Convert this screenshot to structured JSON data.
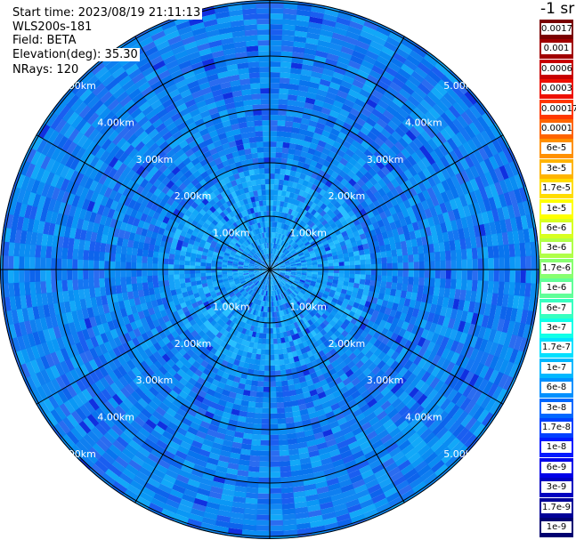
{
  "info": {
    "start_time": "Start time: 2023/08/19 21:11:13",
    "instrument": "WLS200s-181",
    "field": "Field: BETA",
    "elevation": "Elevation(deg): 35.30",
    "nrays": "NRays: 120"
  },
  "rings": [
    "1.00km",
    "2.00km",
    "3.00km",
    "4.00km",
    "5.00km"
  ],
  "colorbar": {
    "unit": "-1 sr",
    "entries": [
      {
        "label": "0.0017",
        "color": "#7a0000",
        "text": "#ffffff"
      },
      {
        "label": "0.001",
        "color": "#a10000",
        "text": "#ffffff"
      },
      {
        "label": "0.0006",
        "color": "#c80000",
        "text": "#ffffff"
      },
      {
        "label": "0.0003",
        "color": "#ee1000",
        "text": "#ffffff"
      },
      {
        "label": "0.00017",
        "color": "#ff3800",
        "text": "#000000"
      },
      {
        "label": "0.0001",
        "color": "#ff6400",
        "text": "#000000"
      },
      {
        "label": "6e-5",
        "color": "#ff9000",
        "text": "#000000"
      },
      {
        "label": "3e-5",
        "color": "#ffb400",
        "text": "#000000"
      },
      {
        "label": "1.7e-5",
        "color": "#ffdc00",
        "text": "#000000"
      },
      {
        "label": "1e-5",
        "color": "#ffff00",
        "text": "#000000"
      },
      {
        "label": "6e-6",
        "color": "#d8ff20",
        "text": "#000000"
      },
      {
        "label": "3e-6",
        "color": "#b0ff48",
        "text": "#000000"
      },
      {
        "label": "1.7e-6",
        "color": "#88ff70",
        "text": "#000000"
      },
      {
        "label": "1e-6",
        "color": "#60ff98",
        "text": "#000000"
      },
      {
        "label": "6e-7",
        "color": "#38ffc0",
        "text": "#000000"
      },
      {
        "label": "3e-7",
        "color": "#10ffe8",
        "text": "#000000"
      },
      {
        "label": "1.7e-7",
        "color": "#00e0ff",
        "text": "#000000"
      },
      {
        "label": "1e-7",
        "color": "#00b8ff",
        "text": "#000000"
      },
      {
        "label": "6e-8",
        "color": "#0090ff",
        "text": "#000000"
      },
      {
        "label": "3e-8",
        "color": "#0068ff",
        "text": "#000000"
      },
      {
        "label": "1.7e-8",
        "color": "#0040ff",
        "text": "#ffffff"
      },
      {
        "label": "1e-8",
        "color": "#0018ff",
        "text": "#ffffff"
      },
      {
        "label": "6e-9",
        "color": "#0000e8",
        "text": "#ffffff"
      },
      {
        "label": "3e-9",
        "color": "#0000c0",
        "text": "#ffffff"
      },
      {
        "label": "1.7e-9",
        "color": "#000098",
        "text": "#ffffff"
      },
      {
        "label": "1e-9",
        "color": "#000070",
        "text": "#ffffff"
      }
    ]
  }
}
